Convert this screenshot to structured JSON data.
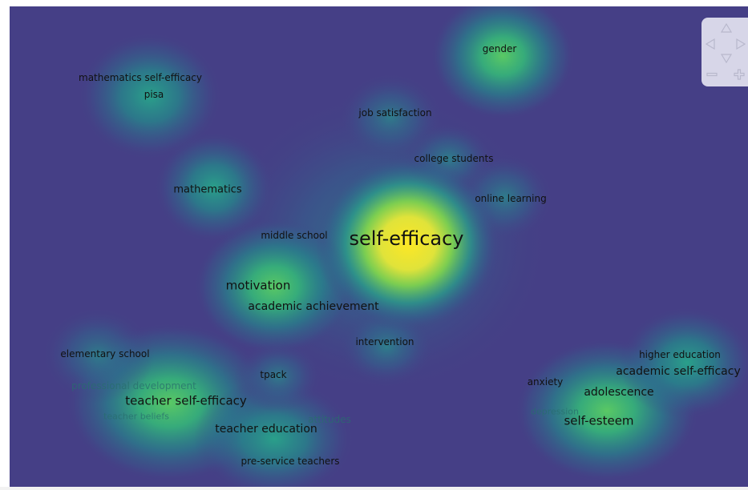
{
  "map": {
    "background_color": "#453f86",
    "palette": {
      "low": "#453f86",
      "mid_low": "#2f6f8e",
      "mid": "#29a08a",
      "mid_high": "#6fcf57",
      "high": "#fde725"
    },
    "keywords": [
      {
        "id": "self-efficacy",
        "label": "self-efficacy",
        "faded": false
      },
      {
        "id": "gender",
        "label": "gender",
        "faded": false
      },
      {
        "id": "math-self-efficacy",
        "label": "mathematics self-efficacy",
        "faded": false
      },
      {
        "id": "pisa",
        "label": "pisa",
        "faded": false
      },
      {
        "id": "job-satisfaction",
        "label": "job satisfaction",
        "faded": false
      },
      {
        "id": "college-students",
        "label": "college students",
        "faded": false
      },
      {
        "id": "mathematics",
        "label": "mathematics",
        "faded": false
      },
      {
        "id": "online-learning",
        "label": "online learning",
        "faded": false
      },
      {
        "id": "middle-school",
        "label": "middle school",
        "faded": false
      },
      {
        "id": "motivation",
        "label": "motivation",
        "faded": false
      },
      {
        "id": "academic-achievement",
        "label": "academic achievement",
        "faded": false
      },
      {
        "id": "intervention",
        "label": "intervention",
        "faded": false
      },
      {
        "id": "elementary-school",
        "label": "elementary school",
        "faded": false
      },
      {
        "id": "tpack",
        "label": "tpack",
        "faded": false
      },
      {
        "id": "professional-development",
        "label": "professional development",
        "faded": true
      },
      {
        "id": "teacher-self-efficacy",
        "label": "teacher self-efficacy",
        "faded": false
      },
      {
        "id": "teacher-beliefs",
        "label": "teacher beliefs",
        "faded": true
      },
      {
        "id": "attitudes",
        "label": "attitudes",
        "faded": true
      },
      {
        "id": "teacher-education",
        "label": "teacher education",
        "faded": false
      },
      {
        "id": "pre-service-teachers",
        "label": "pre-service teachers",
        "faded": false
      },
      {
        "id": "higher-education",
        "label": "higher education",
        "faded": false
      },
      {
        "id": "academic-self-efficacy",
        "label": "academic self-efficacy",
        "faded": false
      },
      {
        "id": "anxiety",
        "label": "anxiety",
        "faded": false
      },
      {
        "id": "adolescence",
        "label": "adolescence",
        "faded": false
      },
      {
        "id": "depression",
        "label": "depression",
        "faded": true
      },
      {
        "id": "self-esteem",
        "label": "self-esteem",
        "faded": false
      }
    ]
  },
  "navigation": {
    "up_icon": "triangle-up-icon",
    "left_icon": "triangle-left-icon",
    "right_icon": "triangle-right-icon",
    "down_icon": "triangle-down-icon",
    "zoom_out_icon": "minus-icon",
    "zoom_in_icon": "plus-icon"
  }
}
